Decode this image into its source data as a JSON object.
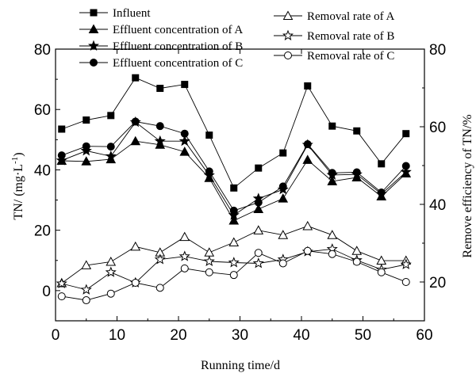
{
  "chart_data": {
    "type": "line",
    "xlabel": "Running time/d",
    "ylabel_left": "TN/ (mg·L",
    "ylabel_left_sup": "-1",
    "ylabel_left_close": ")",
    "ylabel_right": "Remove efficiency of TN/%",
    "xlim": [
      0,
      60
    ],
    "ylim_left": [
      -10,
      80
    ],
    "ylim_right": [
      10,
      80
    ],
    "x_ticks": [
      0,
      10,
      20,
      30,
      40,
      50,
      60
    ],
    "y_left_ticks": [
      0,
      20,
      40,
      60,
      80
    ],
    "y_right_ticks": [
      20,
      40,
      60,
      80
    ],
    "x_tick_labels": [
      "0",
      "10",
      "20",
      "30",
      "40",
      "50",
      "60"
    ],
    "y_left_tick_labels": [
      "0",
      "20",
      "40",
      "60",
      "80"
    ],
    "y_right_tick_labels": [
      "20",
      "40",
      "60",
      "80"
    ],
    "x": [
      1,
      5,
      9,
      13,
      17,
      21,
      25,
      29,
      33,
      37,
      41,
      45,
      49,
      53,
      57
    ],
    "series": [
      {
        "name": "Influent",
        "axis": "left",
        "marker": "square-filled",
        "values": [
          53.5,
          56.5,
          58,
          70.5,
          67,
          68.3,
          51.5,
          34,
          40.6,
          45.6,
          67.8,
          54.5,
          52.9,
          42,
          52
        ]
      },
      {
        "name": "Effluent concentration of A",
        "axis": "left",
        "marker": "triangle-filled",
        "values": [
          43,
          42.8,
          43.5,
          49.5,
          48.3,
          46,
          37.3,
          23.2,
          27,
          30.5,
          43.3,
          36.2,
          37.5,
          31.2,
          38.8
        ]
      },
      {
        "name": "Effluent concentration of B",
        "axis": "left",
        "marker": "star-filled",
        "values": [
          43.1,
          46.3,
          44.5,
          55.8,
          49.5,
          49.5,
          38.2,
          25,
          30.5,
          33.5,
          48.3,
          38.3,
          38.5,
          32,
          39.3
        ]
      },
      {
        "name": "Effluent concentration of C",
        "axis": "left",
        "marker": "circle-filled",
        "values": [
          44.8,
          47.8,
          47.7,
          56,
          54.5,
          52,
          39.5,
          26.5,
          29.2,
          34.5,
          48.5,
          39,
          39.2,
          32.5,
          41.3
        ]
      },
      {
        "name": "Removal rate of A",
        "axis": "right",
        "marker": "triangle-open",
        "values": [
          19.7,
          24.3,
          25.2,
          29.1,
          27.6,
          31.6,
          27.6,
          30.2,
          33.3,
          32.1,
          34.4,
          32.1,
          28,
          25.5,
          25.5
        ]
      },
      {
        "name": "Removal rate of B",
        "axis": "right",
        "marker": "star-open",
        "values": [
          19.6,
          18,
          22.5,
          19.8,
          25.8,
          26.6,
          25.3,
          25,
          24.8,
          25.8,
          27.8,
          28.5,
          25.6,
          23.2,
          24.5
        ]
      },
      {
        "name": "Removal rate of C",
        "axis": "right",
        "marker": "circle-open",
        "values": [
          16.3,
          15.3,
          17,
          19.8,
          18.5,
          23.5,
          22.5,
          21.8,
          27.5,
          24.8,
          28,
          27.2,
          25.2,
          22.5,
          20
        ]
      }
    ],
    "legend_left": [
      "Influent",
      "Effluent concentration of A",
      "Effluent concentration of B",
      "Effluent concentration of C"
    ],
    "legend_right": [
      "Removal rate of A",
      "Removal rate of B",
      "Removal rate of C"
    ],
    "legend_placement": "top",
    "grid": false,
    "line_color": "#000000"
  }
}
